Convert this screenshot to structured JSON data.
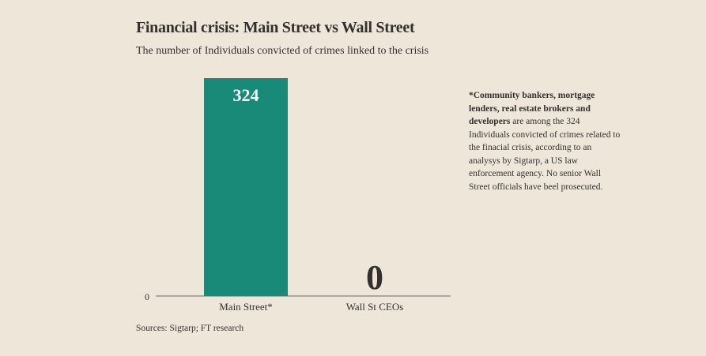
{
  "chart_data": {
    "type": "bar",
    "title": "Financial crisis: Main Street vs Wall Street",
    "subtitle": "The number of Individuals convicted of crimes linked to the crisis",
    "categories": [
      "Main Street*",
      "Wall St CEOs"
    ],
    "values": [
      324,
      0
    ],
    "data_labels": [
      "324",
      "0"
    ],
    "y_tick_labels": [
      "0"
    ],
    "ylim": [
      0,
      324
    ],
    "bar_color": "#1a8a78",
    "grid": false,
    "note": {
      "bold": "*Community bankers, mortgage lenders, real estate brokers and developers",
      "rest": " are among the 324 Individuals convicted of crimes related to the finacial crisis, according to an analysys by Sigtarp, a US law enforcement agency. No senior Wall Street officials have beel prosecuted."
    },
    "source": "Sources: Sigtarp; FT research"
  }
}
